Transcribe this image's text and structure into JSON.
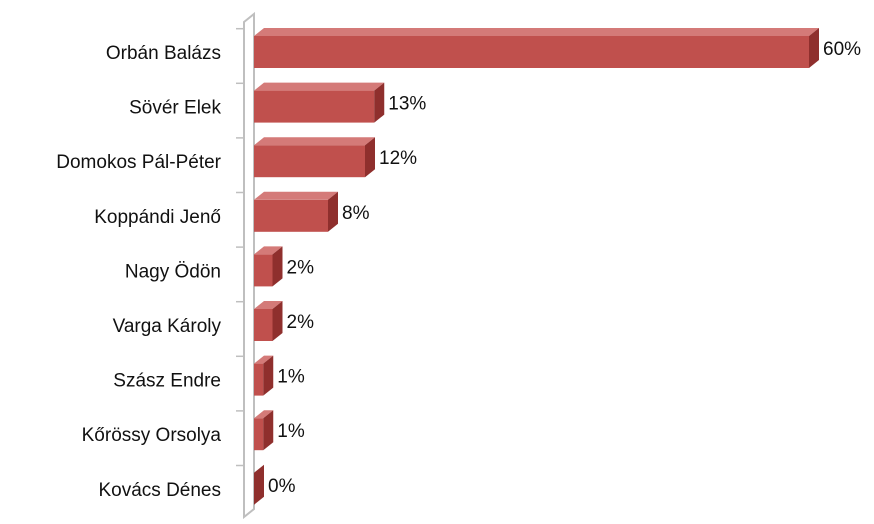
{
  "chart_data": {
    "type": "bar",
    "orientation": "horizontal",
    "style": "3d",
    "categories": [
      "Orbán Balázs",
      "Sövér Elek",
      "Domokos Pál-Péter",
      "Koppándi Jenő",
      "Nagy Ödön",
      "Varga Károly",
      "Szász Endre",
      "Kőrössy Orsolya",
      "Kovács Dénes"
    ],
    "values": [
      60,
      13,
      12,
      8,
      2,
      2,
      1,
      1,
      0
    ],
    "data_labels": [
      "60%",
      "13%",
      "12%",
      "8%",
      "2%",
      "2%",
      "1%",
      "1%",
      "0%"
    ],
    "unit": "%",
    "xlim": [
      0,
      60
    ],
    "grid": false,
    "legend": "none",
    "colors": {
      "bar_front": "#c0504d",
      "bar_top": "#d47a78",
      "bar_side": "#8f2f2d",
      "axis_wall": "#bfbfbf"
    }
  }
}
